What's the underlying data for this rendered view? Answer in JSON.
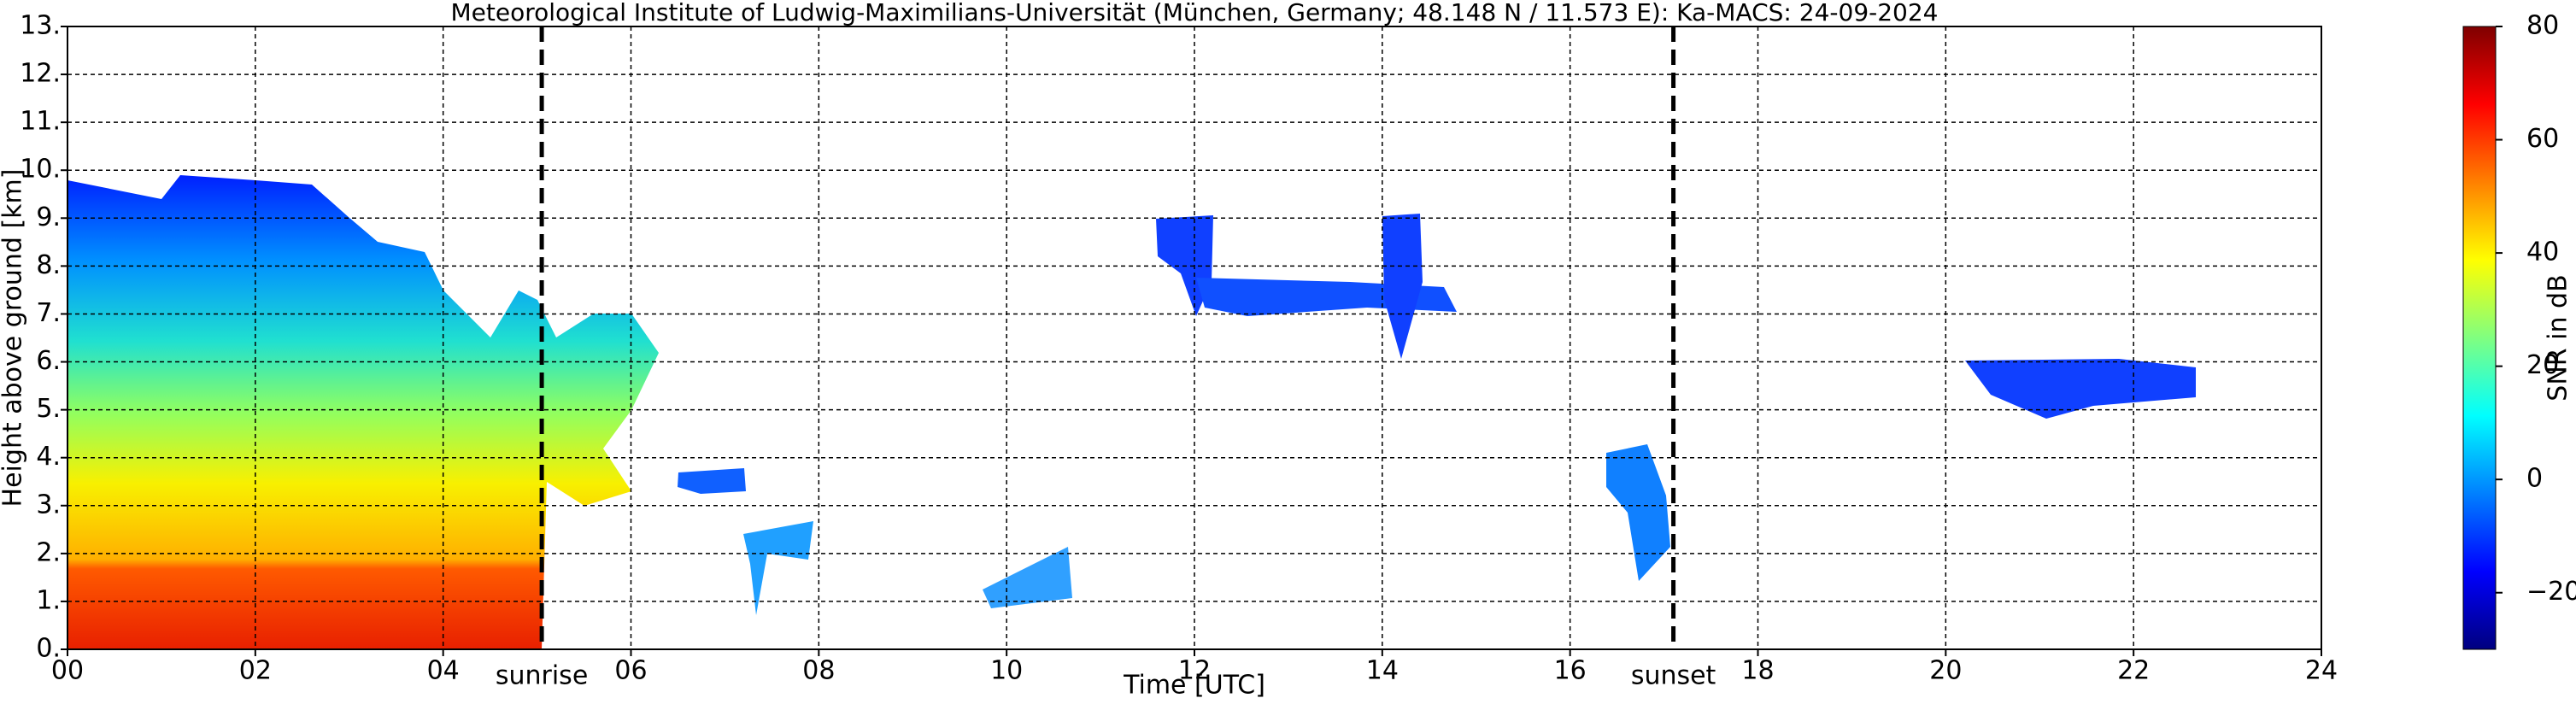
{
  "chart_data": {
    "type": "heatmap",
    "title": "Meteorological Institute of Ludwig-Maximilians-Universität (München, Germany; 48.148 N / 11.573 E):    Ka-MACS: 24-09-2024",
    "xlabel": "Time [UTC]",
    "ylabel": "Height above ground [km]",
    "xlim": [
      0,
      24
    ],
    "xticks": [
      {
        "value": 0,
        "label": "00"
      },
      {
        "value": 2,
        "label": "02"
      },
      {
        "value": 4,
        "label": "04"
      },
      {
        "value": 6,
        "label": "06"
      },
      {
        "value": 8,
        "label": "08"
      },
      10,
      12,
      14,
      16,
      18,
      20,
      22,
      24
    ],
    "ylim": [
      0,
      13
    ],
    "yticks": [
      {
        "value": 0,
        "label": "0."
      },
      {
        "value": 1,
        "label": "1."
      },
      {
        "value": 2,
        "label": "2."
      },
      {
        "value": 3,
        "label": "3."
      },
      {
        "value": 4,
        "label": "4."
      },
      {
        "value": 5,
        "label": "5."
      },
      {
        "value": 6,
        "label": "6."
      },
      {
        "value": 7,
        "label": "7."
      },
      {
        "value": 8,
        "label": "8."
      },
      {
        "value": 9,
        "label": "9."
      },
      {
        "value": 10,
        "label": "10."
      },
      {
        "value": 11,
        "label": "11."
      },
      {
        "value": 12,
        "label": "12."
      },
      {
        "value": 13,
        "label": "13."
      }
    ],
    "grid": true,
    "annotations": [
      {
        "label": "sunrise",
        "x": 5.05
      },
      {
        "label": "sunset",
        "x": 17.1
      }
    ],
    "colorbar": {
      "label": "SNR in dB",
      "lim": [
        -30,
        80
      ],
      "ticks": [
        {
          "value": -20,
          "label": "−20"
        },
        0,
        20,
        40,
        60,
        80
      ],
      "colors": [
        "#00007f",
        "#0000ff",
        "#0080ff",
        "#00ffff",
        "#80ff80",
        "#ffff00",
        "#ff8000",
        "#ff0000",
        "#7f0000"
      ]
    }
  }
}
